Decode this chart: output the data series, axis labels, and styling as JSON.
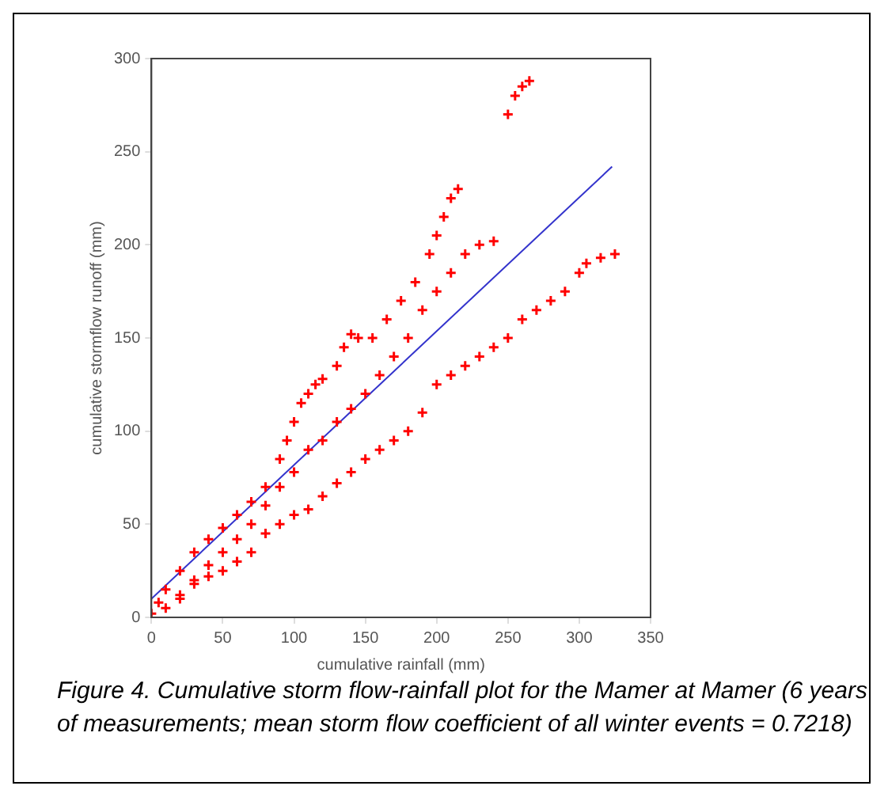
{
  "chart_data": {
    "type": "scatter",
    "xlabel": "cumulative rainfall (mm)",
    "ylabel": "cumulative stormflow runoff (mm)",
    "xlim": [
      0,
      350
    ],
    "ylim": [
      0,
      300
    ],
    "xticks": [
      0,
      50,
      100,
      150,
      200,
      250,
      300,
      350
    ],
    "yticks": [
      0,
      50,
      100,
      150,
      200,
      250,
      300
    ],
    "grid": false,
    "legend": false,
    "marker": "cross",
    "annotations": [
      "Figure 4. Cumulative storm flow-rainfall plot for the Mamer at Mamer (6 years of measurements; mean storm flow coefficient of all winter events = 0.7218)"
    ],
    "series": [
      {
        "color": "#ff0000",
        "x": [
          0,
          5,
          10,
          20,
          30,
          40,
          50,
          60,
          70,
          80,
          90,
          95,
          100,
          105,
          110,
          115,
          120,
          130,
          135,
          140,
          145,
          155,
          165,
          175,
          185,
          195,
          200,
          205,
          210,
          215,
          250,
          255,
          260,
          265
        ],
        "values": [
          2,
          8,
          15,
          25,
          35,
          42,
          48,
          55,
          62,
          70,
          85,
          95,
          105,
          115,
          120,
          125,
          128,
          135,
          145,
          152,
          150,
          150,
          160,
          170,
          180,
          195,
          205,
          215,
          225,
          230,
          270,
          280,
          285,
          288
        ]
      },
      {
        "color": "#ff0000",
        "x": [
          20,
          30,
          40,
          50,
          60,
          70,
          80,
          90,
          100,
          110,
          120,
          130,
          140,
          150,
          160,
          170,
          180,
          190,
          200,
          210,
          220,
          230,
          240
        ],
        "values": [
          12,
          18,
          28,
          35,
          42,
          50,
          60,
          70,
          78,
          90,
          95,
          105,
          112,
          120,
          130,
          140,
          150,
          165,
          175,
          185,
          195,
          200,
          202
        ]
      },
      {
        "color": "#ff0000",
        "x": [
          10,
          20,
          30,
          40,
          50,
          60,
          70,
          80,
          90,
          100,
          110,
          120,
          130,
          140,
          150,
          160,
          170,
          180,
          190,
          200,
          210,
          220,
          230,
          240,
          250,
          260,
          270,
          280,
          290,
          300,
          305,
          315,
          325
        ],
        "values": [
          5,
          10,
          20,
          22,
          25,
          30,
          35,
          45,
          50,
          55,
          58,
          65,
          72,
          78,
          85,
          90,
          95,
          100,
          110,
          125,
          130,
          135,
          140,
          145,
          150,
          160,
          165,
          170,
          175,
          185,
          190,
          193,
          195
        ]
      },
      {
        "type": "line",
        "marker": "none",
        "color": "#3333cc",
        "x": [
          0,
          323
        ],
        "values": [
          10,
          242
        ]
      }
    ]
  }
}
